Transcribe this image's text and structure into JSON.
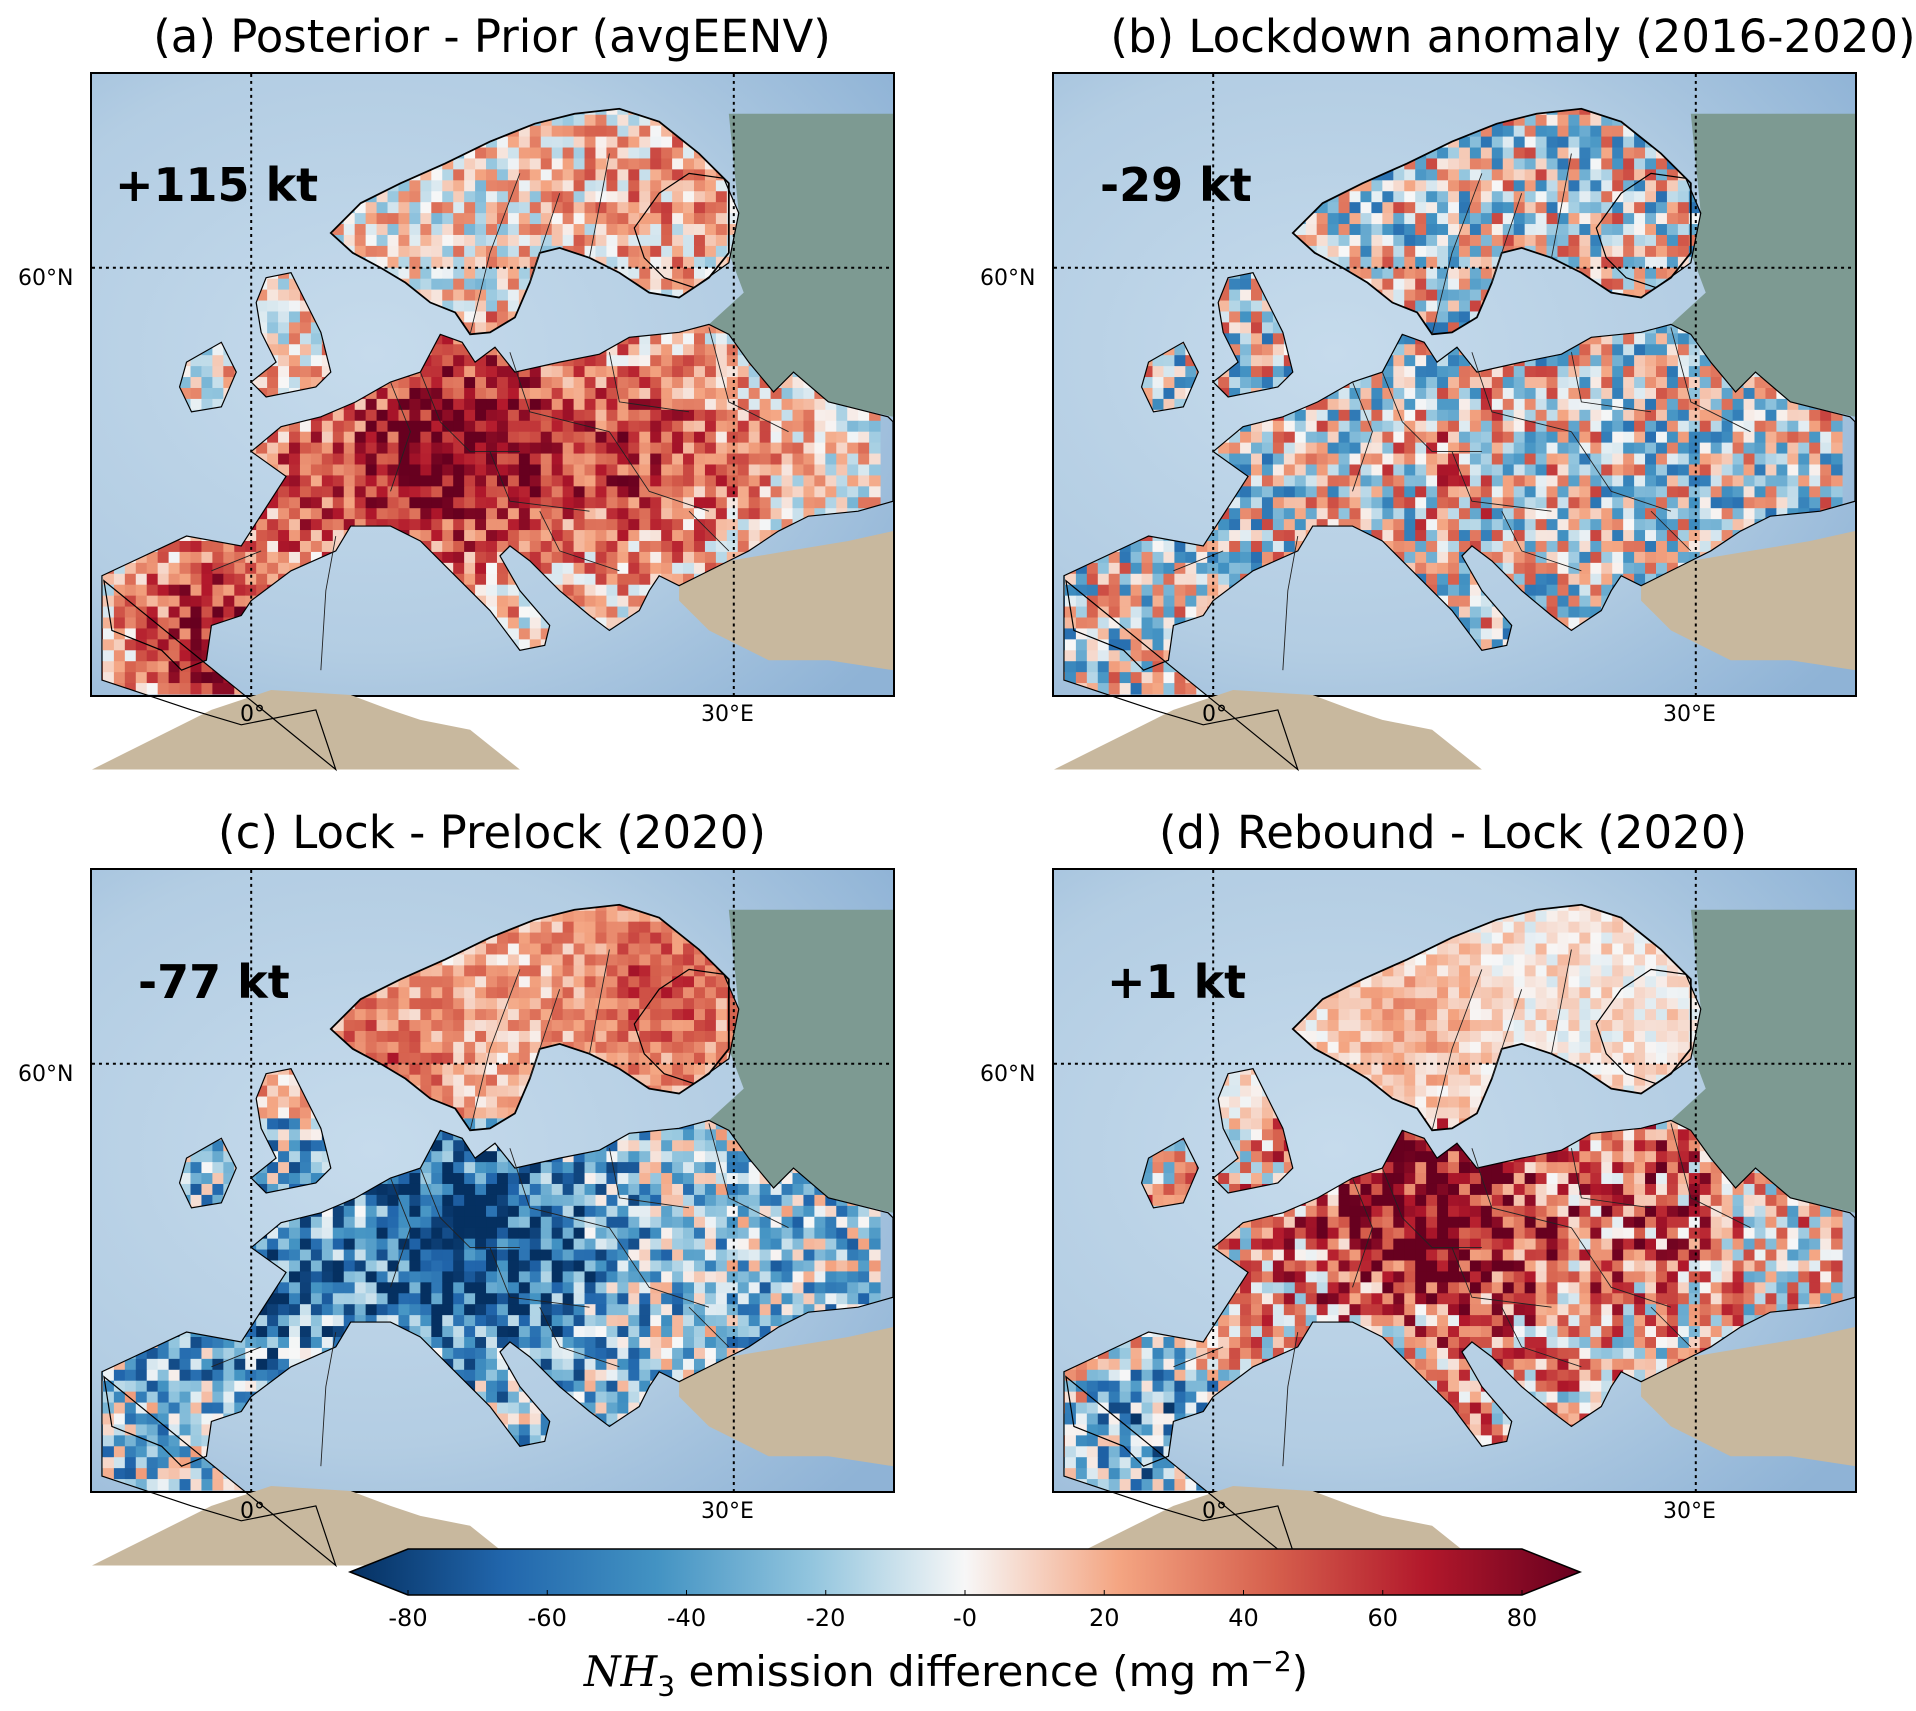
{
  "panels": [
    {
      "title": "(a) Posterior - Prior (avgEENV)",
      "total": "+115 kt",
      "pattern": "positive"
    },
    {
      "title": "(b) Lockdown anomaly (2016-2020)",
      "total": "-29 kt",
      "pattern": "mixed"
    },
    {
      "title": "(c) Lock - Prelock (2020)",
      "total": "-77 kt",
      "pattern": "negative"
    },
    {
      "title": "(d) Rebound - Lock (2020)",
      "total": "+1 kt",
      "pattern": "rebound"
    }
  ],
  "axes": {
    "lat_label": "60°N",
    "lon_labels": [
      "0°",
      "30°E"
    ]
  },
  "colorbar": {
    "ticks": [
      "-80",
      "-60",
      "-40",
      "-20",
      "-0",
      "20",
      "40",
      "60",
      "80"
    ],
    "min": -80,
    "max": 80,
    "colormap": "RdBu_r",
    "label_main": "NH",
    "label_sub": "3",
    "label_rest": " emission difference (mg m",
    "label_sup": "−2",
    "label_end": ")"
  },
  "colors": {
    "ocean": "#b9d1e6",
    "land_east": "#7d9a92",
    "land_south": "#c8b89e",
    "strong_positive": "#67001f",
    "strong_negative": "#053061",
    "neutral": "#f7f7f7"
  },
  "chart_data": [
    {
      "type": "heatmap",
      "title": "(a) Posterior - Prior (avgEENV)",
      "total_kt": 115,
      "range": [
        -80,
        80
      ],
      "units": "mg m-2",
      "description_values": "predominantly positive, strongest over central Europe and Spain"
    },
    {
      "type": "heatmap",
      "title": "(b) Lockdown anomaly (2016-2020)",
      "total_kt": -29,
      "range": [
        -80,
        80
      ],
      "units": "mg m-2"
    },
    {
      "type": "heatmap",
      "title": "(c) Lock - Prelock (2020)",
      "total_kt": -77,
      "range": [
        -80,
        80
      ],
      "units": "mg m-2"
    },
    {
      "type": "heatmap",
      "title": "(d) Rebound - Lock (2020)",
      "total_kt": 1,
      "range": [
        -80,
        80
      ],
      "units": "mg m-2"
    }
  ]
}
